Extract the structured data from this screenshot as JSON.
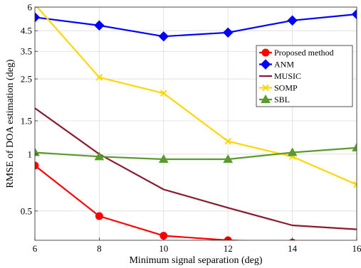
{
  "chart_data": {
    "type": "line",
    "title": "",
    "xlabel": "Minimum signal separation (deg)",
    "ylabel": "RMSE of DOA estimation (deg)",
    "xlim": [
      6,
      16
    ],
    "ylim": [
      0.35,
      6
    ],
    "y_scale": "log",
    "x": [
      6,
      8,
      10,
      12,
      14,
      16
    ],
    "x_ticks": [
      6,
      8,
      10,
      12,
      14,
      16
    ],
    "x_tick_labels": [
      "6",
      "8",
      "10",
      "12",
      "14",
      "16"
    ],
    "y_ticks": [
      0.5,
      1,
      1.5,
      2.5,
      3.5,
      4.5,
      6
    ],
    "y_tick_labels": [
      "0.5",
      "1",
      "1.5",
      "2.5",
      "3.5",
      "4.5",
      "6"
    ],
    "grid": true,
    "legend_position": "top-right",
    "series": [
      {
        "name": "Proposed method",
        "color": "#ff0000",
        "marker": "circle",
        "values": [
          0.87,
          0.47,
          0.37,
          0.35,
          0.34,
          0.33
        ]
      },
      {
        "name": "ANM",
        "color": "#0000ff",
        "marker": "diamond",
        "values": [
          5.3,
          4.8,
          4.2,
          4.4,
          5.1,
          5.5
        ]
      },
      {
        "name": "MUSIC",
        "color": "#8b1a2b",
        "marker": "none",
        "values": [
          1.75,
          1.0,
          0.65,
          0.52,
          0.42,
          0.4
        ]
      },
      {
        "name": "SOMP",
        "color": "#ffd700",
        "marker": "x",
        "values": [
          6.2,
          2.55,
          2.1,
          1.17,
          0.97,
          0.69
        ]
      },
      {
        "name": "SBL",
        "color": "#5a9a2e",
        "marker": "triangle",
        "values": [
          1.02,
          0.97,
          0.94,
          0.94,
          1.02,
          1.08
        ]
      }
    ]
  }
}
